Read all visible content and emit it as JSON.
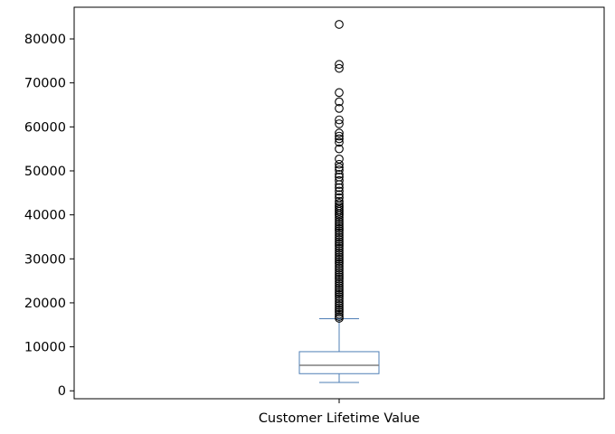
{
  "chart_data": {
    "type": "boxplot",
    "title": "",
    "xlabel": "",
    "ylabel": "",
    "ylim": [
      -1800,
      87200
    ],
    "yticks": [
      0,
      10000,
      20000,
      30000,
      40000,
      50000,
      60000,
      70000,
      80000
    ],
    "ytick_labels": [
      "0",
      "10000",
      "20000",
      "30000",
      "40000",
      "50000",
      "60000",
      "70000",
      "80000"
    ],
    "categories": [
      "Customer Lifetime Value"
    ],
    "box": {
      "label": "Customer Lifetime Value",
      "whisker_low": 1900,
      "q1": 3900,
      "median": 5800,
      "q3": 8900,
      "whisker_high": 16400
    },
    "outliers": [
      83300,
      74200,
      73300,
      67800,
      65700,
      64200,
      61600,
      60700,
      58600,
      57900,
      57300,
      56500,
      55000,
      52700,
      51500,
      50800,
      50200,
      49200,
      48600,
      47800,
      46900,
      46200,
      45400,
      44600,
      43900,
      43100,
      42600,
      42100,
      41700,
      41200,
      40800,
      40300,
      39900,
      39400,
      38900,
      38400,
      37900,
      37400,
      36900,
      36400,
      35900,
      35400,
      34900,
      34400,
      33900,
      33400,
      32900,
      32400,
      31900,
      31400,
      30900,
      30400,
      29900,
      29400,
      28900,
      28400,
      27900,
      27400,
      26900,
      26400,
      25900,
      25400,
      24900,
      24400,
      23900,
      23400,
      22900,
      22400,
      21900,
      21400,
      20900,
      20400,
      19900,
      19400,
      18900,
      18400,
      17900,
      17400,
      16900,
      16500
    ],
    "colors": {
      "box": "#4f7fb6",
      "median": "#7f7f7f",
      "axes": "#000000",
      "outlier": "#000000"
    }
  }
}
